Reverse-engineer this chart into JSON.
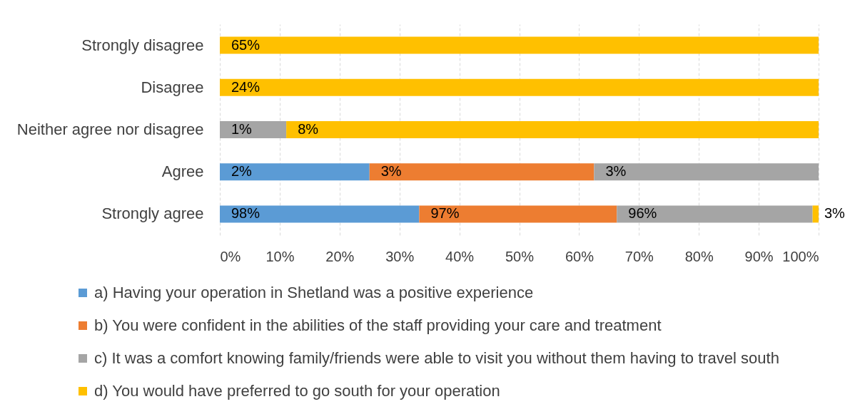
{
  "chart_data": {
    "type": "bar",
    "orientation": "horizontal",
    "stacked": true,
    "categories": [
      "Strongly disagree",
      "Disagree",
      "Neither agree nor disagree",
      "Agree",
      "Strongly agree"
    ],
    "series": [
      {
        "name": "a) Having your operation in Shetland was a positive experience",
        "color": "#5b9bd5",
        "values": [
          null,
          null,
          null,
          25,
          33.3
        ]
      },
      {
        "name": "b) You were confident in the abilities of the staff providing your care and treatment",
        "color": "#ed7d31",
        "values": [
          null,
          null,
          null,
          37.5,
          33.0
        ]
      },
      {
        "name": "c) It was a comfort knowing family/friends were able to visit you without them having to travel south",
        "color": "#a5a5a5",
        "values": [
          null,
          null,
          11.1,
          37.5,
          32.7
        ]
      },
      {
        "name": "d) You would have preferred to go south for your operation",
        "color": "#ffc000",
        "values": [
          100,
          100,
          88.9,
          null,
          1.0
        ]
      }
    ],
    "annotations": [
      {
        "text": "65%",
        "x": 0,
        "y": "Strongly disagree"
      },
      {
        "text": "24%",
        "x": 0,
        "y": "Disagree"
      },
      {
        "text": "1%",
        "x": 0,
        "y": "Neither agree nor disagree"
      },
      {
        "text": "8%",
        "x": 11.1,
        "y": "Neither agree nor disagree"
      },
      {
        "text": "2%",
        "x": 0,
        "y": "Agree"
      },
      {
        "text": "3%",
        "x": 25,
        "y": "Agree"
      },
      {
        "text": "3%",
        "x": 62.5,
        "y": "Agree"
      },
      {
        "text": "98%",
        "x": 0,
        "y": "Strongly agree"
      },
      {
        "text": "97%",
        "x": 33.3,
        "y": "Strongly agree"
      },
      {
        "text": "96%",
        "x": 66.3,
        "y": "Strongly agree"
      },
      {
        "text": "3%",
        "x": 100,
        "y": "Strongly agree"
      }
    ],
    "xlim": [
      0,
      100
    ],
    "xticks": [
      {
        "value": 0,
        "label": "0%"
      },
      {
        "value": 10,
        "label": "10%"
      },
      {
        "value": 20,
        "label": "20%"
      },
      {
        "value": 30,
        "label": "30%"
      },
      {
        "value": 40,
        "label": "40%"
      },
      {
        "value": 50,
        "label": "50%"
      },
      {
        "value": 60,
        "label": "60%"
      },
      {
        "value": 70,
        "label": "70%"
      },
      {
        "value": 80,
        "label": "80%"
      },
      {
        "value": 90,
        "label": "90%"
      },
      {
        "value": 100,
        "label": "100%"
      }
    ],
    "grid": "x",
    "legend": "bottom"
  }
}
